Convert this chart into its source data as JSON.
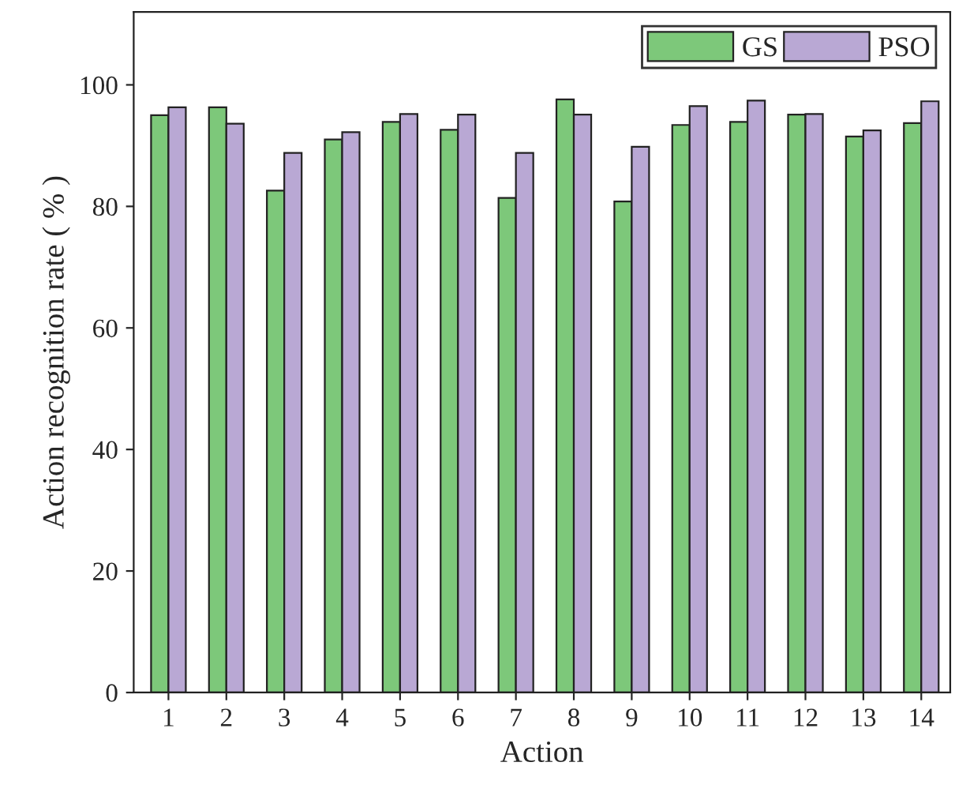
{
  "chart_data": {
    "type": "bar",
    "xlabel": "Action",
    "ylabel": "Action recognition rate ( % )",
    "categories": [
      "1",
      "2",
      "3",
      "4",
      "5",
      "6",
      "7",
      "8",
      "9",
      "10",
      "11",
      "12",
      "13",
      "14"
    ],
    "series": [
      {
        "name": "GS",
        "color": "#7dc87a",
        "values": [
          95.0,
          96.3,
          82.6,
          91.0,
          93.9,
          92.6,
          81.4,
          97.6,
          80.8,
          93.4,
          93.9,
          95.1,
          91.5,
          93.7
        ]
      },
      {
        "name": "PSO",
        "color": "#b9a8d4",
        "values": [
          96.3,
          93.6,
          88.8,
          92.2,
          95.2,
          95.1,
          88.8,
          95.1,
          89.8,
          96.5,
          97.4,
          95.2,
          92.5,
          97.3
        ]
      }
    ],
    "ylim": [
      0,
      112
    ],
    "yticks": [
      0,
      20,
      40,
      60,
      80,
      100
    ],
    "grid": false,
    "legend": "top right"
  }
}
